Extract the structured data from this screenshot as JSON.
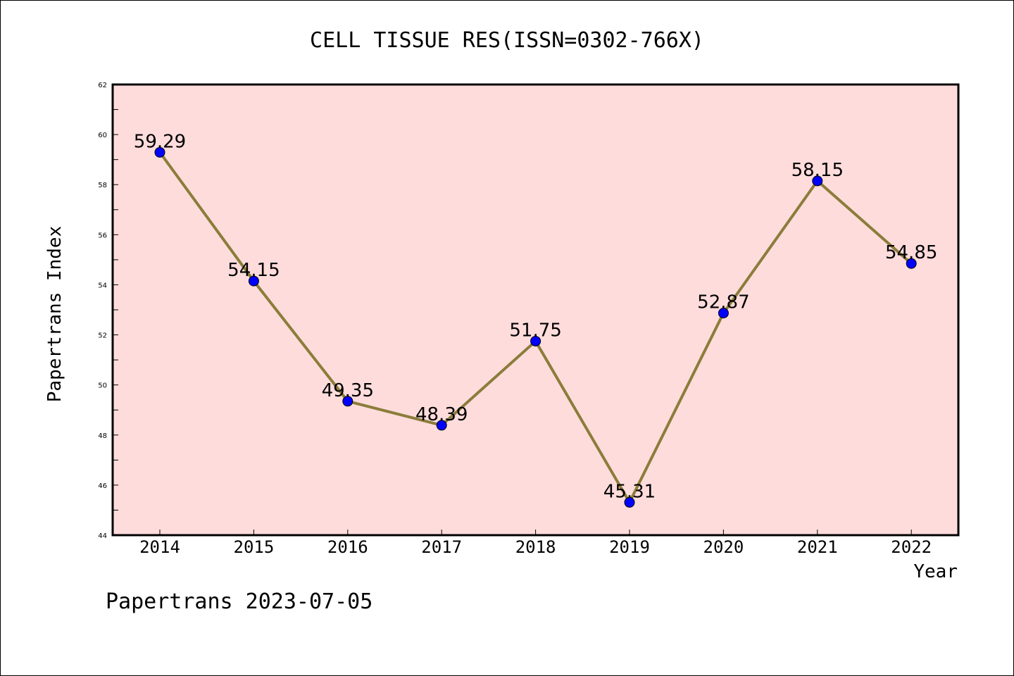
{
  "chart_data": {
    "type": "line",
    "title": "CELL TISSUE RES(ISSN=0302-766X)",
    "xlabel": "Year",
    "ylabel": "Papertrans Index",
    "categories": [
      "2014",
      "2015",
      "2016",
      "2017",
      "2018",
      "2019",
      "2020",
      "2021",
      "2022"
    ],
    "series": [
      {
        "values": [
          59.29,
          54.15,
          49.35,
          48.39,
          51.75,
          45.31,
          52.87,
          58.15,
          54.85
        ]
      }
    ],
    "data_labels": [
      "59.29",
      "54.15",
      "49.35",
      "48.39",
      "51.75",
      "45.31",
      "52.87",
      "58.15",
      "54.85"
    ],
    "ylim": [
      44,
      62
    ],
    "yticks": [
      44,
      46,
      48,
      50,
      52,
      54,
      56,
      58,
      60,
      62
    ],
    "ytick_labels": [
      "44",
      "46",
      "48",
      "50",
      "52",
      "54",
      "56",
      "58",
      "60",
      "62"
    ],
    "grid": false,
    "legend": "none",
    "footer": "Papertrans 2023-07-05",
    "colors": {
      "plot_background": "#ffdcdc",
      "line": "#8b7d3a",
      "marker": "#0000ff",
      "axis": "#000000"
    }
  }
}
